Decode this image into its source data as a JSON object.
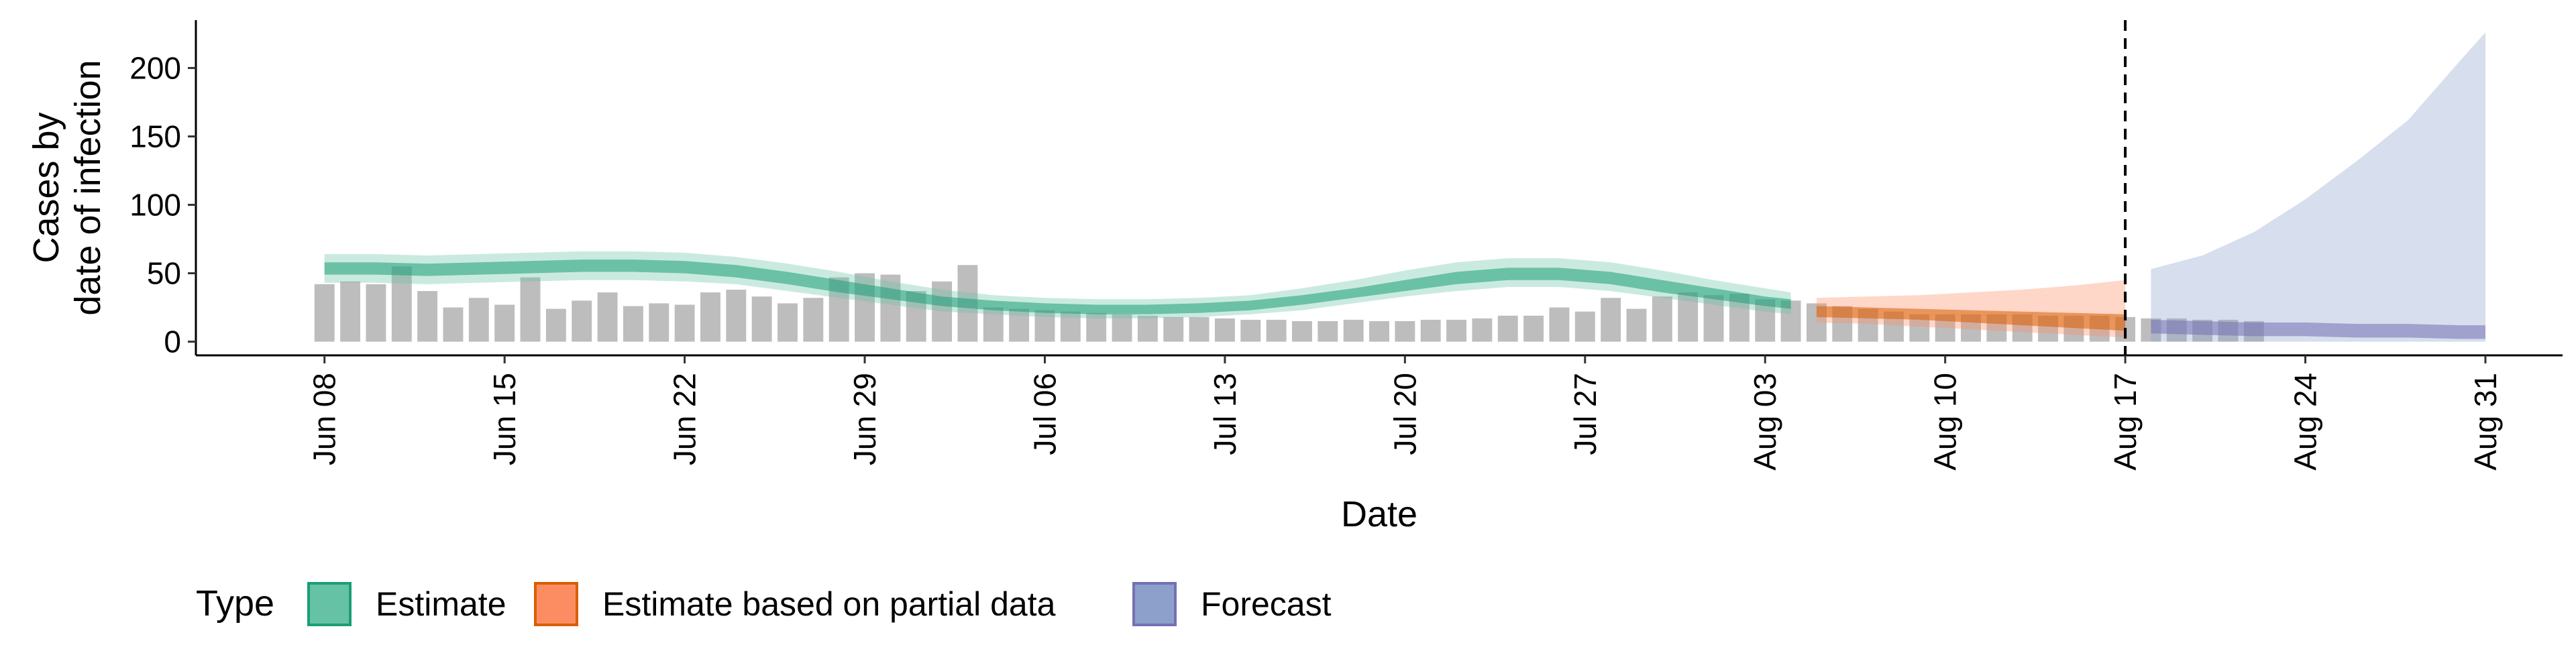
{
  "chart_data": {
    "type": "area",
    "xlabel": "Date",
    "ylabel": [
      "Cases by",
      "date of infection"
    ],
    "ylim": [
      -10,
      235
    ],
    "y_ticks": [
      0,
      50,
      100,
      150,
      200
    ],
    "x_range_days": [
      "2020-06-03",
      "2020-09-03"
    ],
    "x_ticks": [
      {
        "date": "2020-06-08",
        "label": "Jun 08"
      },
      {
        "date": "2020-06-15",
        "label": "Jun 15"
      },
      {
        "date": "2020-06-22",
        "label": "Jun 22"
      },
      {
        "date": "2020-06-29",
        "label": "Jun 29"
      },
      {
        "date": "2020-07-06",
        "label": "Jul 06"
      },
      {
        "date": "2020-07-13",
        "label": "Jul 13"
      },
      {
        "date": "2020-07-20",
        "label": "Jul 20"
      },
      {
        "date": "2020-07-27",
        "label": "Jul 27"
      },
      {
        "date": "2020-08-03",
        "label": "Aug 03"
      },
      {
        "date": "2020-08-10",
        "label": "Aug 10"
      },
      {
        "date": "2020-08-17",
        "label": "Aug 17"
      },
      {
        "date": "2020-08-24",
        "label": "Aug 24"
      },
      {
        "date": "2020-08-31",
        "label": "Aug 31"
      }
    ],
    "grid": false,
    "vline_date": "2020-08-17",
    "bars": {
      "start_date": "2020-06-08",
      "color": "#bdbdbd",
      "values": [
        42,
        44,
        42,
        55,
        37,
        25,
        32,
        27,
        47,
        24,
        30,
        36,
        26,
        28,
        27,
        36,
        38,
        33,
        28,
        32,
        47,
        50,
        49,
        37,
        44,
        56,
        25,
        24,
        23,
        22,
        21,
        20,
        19,
        18,
        18,
        17,
        16,
        16,
        15,
        15,
        16,
        15,
        15,
        16,
        16,
        17,
        19,
        19,
        25,
        22,
        32,
        24,
        33,
        36,
        34,
        35,
        31,
        30,
        28,
        26,
        24,
        22,
        20,
        20,
        20,
        20,
        20,
        19,
        19,
        19,
        18,
        17,
        17,
        16,
        16,
        15
      ]
    },
    "series": [
      {
        "name": "Estimate",
        "color": "#1b9e77",
        "fill": "#66c2a5",
        "dates": [
          "2020-06-08",
          "2020-06-10",
          "2020-06-12",
          "2020-06-14",
          "2020-06-16",
          "2020-06-18",
          "2020-06-20",
          "2020-06-22",
          "2020-06-24",
          "2020-06-26",
          "2020-06-28",
          "2020-06-30",
          "2020-07-02",
          "2020-07-04",
          "2020-07-06",
          "2020-07-08",
          "2020-07-10",
          "2020-07-12",
          "2020-07-14",
          "2020-07-16",
          "2020-07-18",
          "2020-07-20",
          "2020-07-22",
          "2020-07-24",
          "2020-07-26",
          "2020-07-28",
          "2020-07-30",
          "2020-08-01",
          "2020-08-03",
          "2020-08-04"
        ],
        "median": [
          53,
          53,
          52,
          53,
          54,
          55,
          55,
          54,
          51,
          46,
          40,
          34,
          29,
          26,
          24,
          23,
          23,
          24,
          26,
          30,
          35,
          41,
          46,
          49,
          49,
          46,
          40,
          34,
          29,
          27
        ],
        "inner_lower": [
          49,
          49,
          48,
          49,
          50,
          51,
          51,
          50,
          47,
          42,
          36,
          31,
          26,
          23,
          21,
          20,
          20,
          21,
          23,
          27,
          32,
          37,
          42,
          45,
          45,
          42,
          36,
          31,
          26,
          24
        ],
        "inner_upper": [
          58,
          58,
          57,
          58,
          59,
          60,
          60,
          59,
          56,
          51,
          45,
          39,
          33,
          30,
          28,
          27,
          27,
          28,
          30,
          34,
          39,
          45,
          51,
          54,
          54,
          51,
          45,
          39,
          33,
          31
        ],
        "outer_lower": [
          43,
          43,
          42,
          43,
          44,
          45,
          45,
          44,
          42,
          37,
          32,
          27,
          22,
          20,
          18,
          17,
          17,
          18,
          20,
          23,
          28,
          33,
          37,
          40,
          40,
          37,
          32,
          27,
          22,
          20
        ],
        "outer_upper": [
          64,
          64,
          63,
          64,
          65,
          66,
          66,
          65,
          62,
          57,
          51,
          44,
          38,
          34,
          32,
          31,
          31,
          32,
          34,
          39,
          45,
          52,
          58,
          61,
          61,
          58,
          52,
          45,
          39,
          36
        ]
      },
      {
        "name": "Estimate based on partial data",
        "color": "#d95f02",
        "fill": "#fc8d62",
        "dates": [
          "2020-08-05",
          "2020-08-07",
          "2020-08-09",
          "2020-08-11",
          "2020-08-13",
          "2020-08-15",
          "2020-08-17"
        ],
        "median": [
          22,
          21,
          20,
          18,
          17,
          15,
          14
        ],
        "inner_lower": [
          18,
          17,
          16,
          14,
          12,
          10,
          8
        ],
        "inner_upper": [
          26,
          25,
          24,
          23,
          22,
          21,
          20
        ],
        "outer_lower": [
          14,
          13,
          11,
          9,
          7,
          5,
          3
        ],
        "outer_upper": [
          32,
          33,
          34,
          36,
          38,
          41,
          45
        ]
      },
      {
        "name": "Forecast",
        "color": "#7570b3",
        "fill": "#8da0cb",
        "dates": [
          "2020-08-18",
          "2020-08-20",
          "2020-08-22",
          "2020-08-24",
          "2020-08-26",
          "2020-08-28",
          "2020-08-30",
          "2020-08-31"
        ],
        "median": [
          12,
          11,
          10,
          10,
          9,
          9,
          8,
          8
        ],
        "inner_lower": [
          6,
          5,
          4,
          4,
          3,
          3,
          2,
          2
        ],
        "inner_upper": [
          16,
          15,
          14,
          14,
          13,
          13,
          12,
          12
        ],
        "outer_lower": [
          0,
          0,
          0,
          0,
          0,
          0,
          0,
          0
        ],
        "outer_upper": [
          53,
          63,
          80,
          104,
          132,
          162,
          205,
          226
        ]
      }
    ],
    "legend": {
      "title": "Type",
      "position": "bottom-left",
      "items": [
        {
          "label": "Estimate",
          "fill": "#66c2a5",
          "stroke": "#1b9e77"
        },
        {
          "label": "Estimate based on partial data",
          "fill": "#fc8d62",
          "stroke": "#d95f02"
        },
        {
          "label": "Forecast",
          "fill": "#8da0cb",
          "stroke": "#7570b3"
        }
      ]
    }
  }
}
